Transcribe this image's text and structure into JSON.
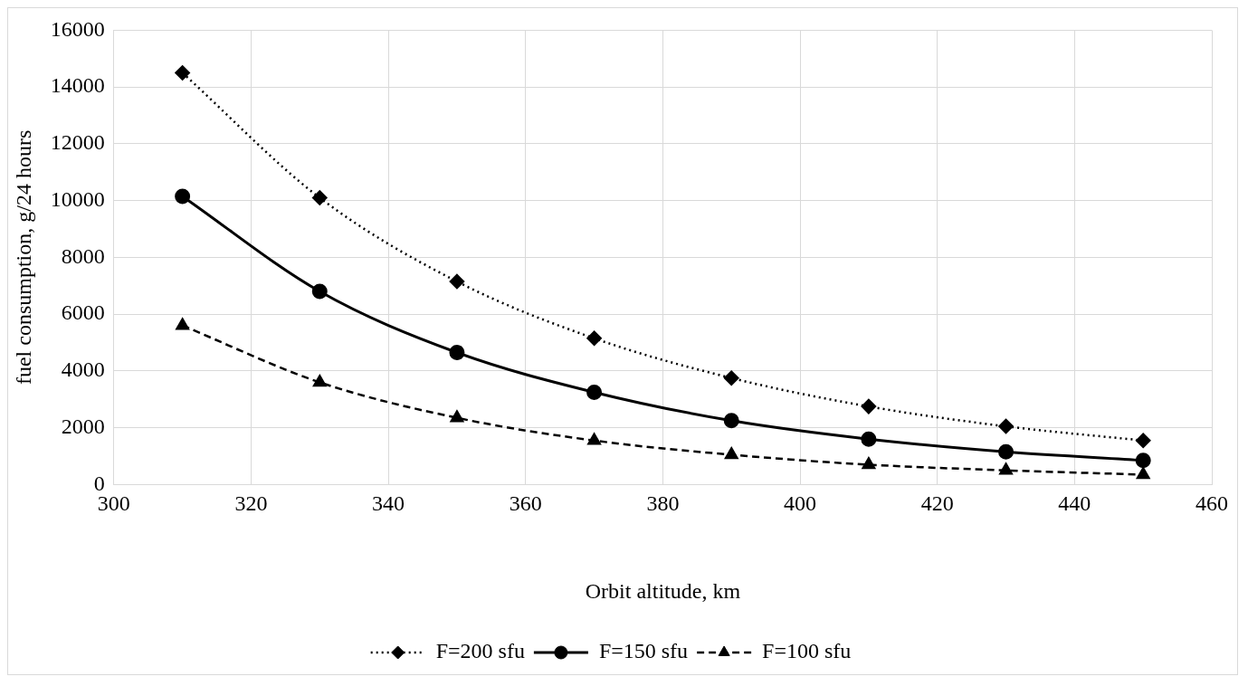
{
  "chart_data": {
    "type": "line",
    "xlabel": "Orbit altitude, km",
    "ylabel": "fuel consumption, g/24 hours",
    "x": [
      310,
      330,
      350,
      370,
      390,
      410,
      430,
      450
    ],
    "series": [
      {
        "name": "F=200 sfu",
        "color": "#000000",
        "marker": "diamond",
        "line_style": "dotted",
        "values": [
          14500,
          10100,
          7150,
          5150,
          3750,
          2750,
          2050,
          1550
        ]
      },
      {
        "name": "F=150 sfu",
        "color": "#000000",
        "marker": "circle",
        "line_style": "solid",
        "values": [
          10150,
          6800,
          4650,
          3250,
          2250,
          1600,
          1150,
          850
        ]
      },
      {
        "name": "F=100 sfu",
        "color": "#000000",
        "marker": "triangle",
        "line_style": "dashed",
        "values": [
          5600,
          3600,
          2350,
          1550,
          1050,
          700,
          500,
          350
        ]
      }
    ],
    "xlim": [
      300,
      460
    ],
    "xticks": [
      300,
      320,
      340,
      360,
      380,
      400,
      420,
      440,
      460
    ],
    "ylim": [
      0,
      16000
    ],
    "yticks": [
      0,
      2000,
      4000,
      6000,
      8000,
      10000,
      12000,
      14000,
      16000
    ],
    "grid": true,
    "legend": "bottom"
  }
}
